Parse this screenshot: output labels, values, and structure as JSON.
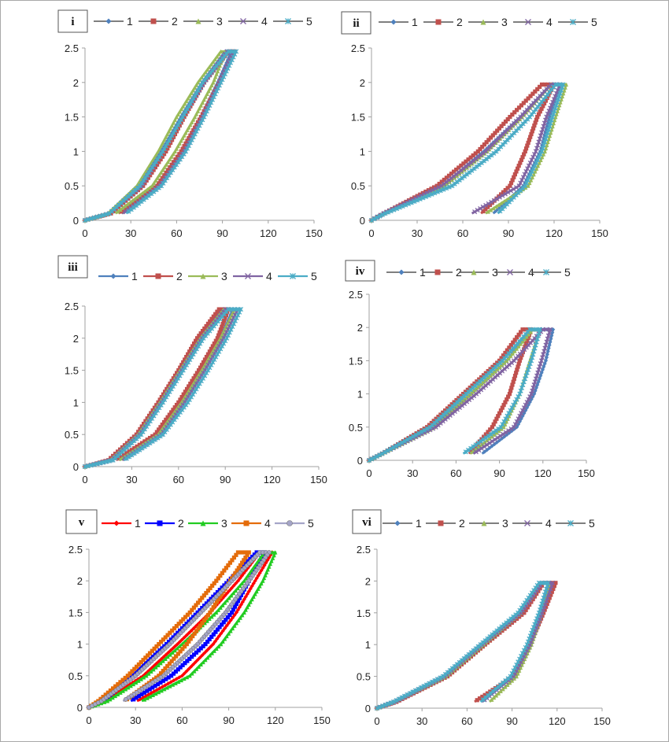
{
  "chart_data": [
    {
      "panel": "i",
      "type": "line",
      "xlim": [
        0,
        150
      ],
      "ylim": [
        0,
        2.5
      ],
      "xticks": [
        "0",
        "30",
        "60",
        "90",
        "120",
        "150"
      ],
      "yticks": [
        "0",
        "0.5",
        "1",
        "1.5",
        "2",
        "2.5"
      ],
      "legend_position": "top",
      "grid": false,
      "y_levels": [
        0,
        0.1,
        0.5,
        1,
        1.5,
        2,
        2.45
      ],
      "series": [
        {
          "name": "1",
          "color": "#4F81BD",
          "marker": "diamond",
          "loading_x": [
            0,
            16,
            36,
            50,
            63,
            77,
            92
          ],
          "unloading_x": [
            null,
            24,
            48,
            64,
            76,
            87,
            96
          ]
        },
        {
          "name": "2",
          "color": "#C0504D",
          "marker": "square",
          "loading_x": [
            0,
            17,
            38,
            53,
            65,
            78,
            94
          ],
          "unloading_x": [
            null,
            22,
            47,
            63,
            76,
            88,
            98
          ]
        },
        {
          "name": "3",
          "color": "#9BBB59",
          "marker": "triangle",
          "loading_x": [
            0,
            15,
            34,
            48,
            60,
            74,
            89
          ],
          "unloading_x": [
            null,
            20,
            44,
            59,
            72,
            84,
            92
          ]
        },
        {
          "name": "4",
          "color": "#8064A2",
          "marker": "x",
          "loading_x": [
            0,
            16,
            37,
            51,
            64,
            78,
            93
          ],
          "unloading_x": [
            null,
            25,
            49,
            65,
            77,
            88,
            97
          ]
        },
        {
          "name": "5",
          "color": "#4BACC6",
          "marker": "star",
          "loading_x": [
            0,
            16,
            36,
            51,
            64,
            77,
            94
          ],
          "unloading_x": [
            null,
            27,
            50,
            66,
            78,
            89,
            99
          ]
        }
      ]
    },
    {
      "panel": "ii",
      "type": "line",
      "xlim": [
        0,
        150
      ],
      "ylim": [
        0,
        2.5
      ],
      "xticks": [
        "0",
        "30",
        "60",
        "90",
        "120",
        "150"
      ],
      "yticks": [
        "0",
        "0.5",
        "1",
        "1.5",
        "2",
        "2.5"
      ],
      "legend_position": "top",
      "grid": false,
      "y_levels": [
        0,
        0.1,
        0.5,
        1,
        1.5,
        1.97
      ],
      "series": [
        {
          "name": "1",
          "color": "#4F81BD",
          "marker": "diamond",
          "loading_x": [
            0,
            8,
            47,
            74,
            98,
            118
          ],
          "unloading_x": [
            null,
            80,
            100,
            111,
            117,
            124
          ]
        },
        {
          "name": "2",
          "color": "#C0504D",
          "marker": "square",
          "loading_x": [
            0,
            8,
            43,
            70,
            91,
            112
          ],
          "unloading_x": [
            null,
            72,
            91,
            101,
            109,
            120
          ]
        },
        {
          "name": "3",
          "color": "#9BBB59",
          "marker": "triangle",
          "loading_x": [
            0,
            8,
            48,
            76,
            99,
            118
          ],
          "unloading_x": [
            null,
            75,
            103,
            114,
            121,
            128
          ]
        },
        {
          "name": "4",
          "color": "#8064A2",
          "marker": "x",
          "loading_x": [
            0,
            8,
            46,
            75,
            98,
            118
          ],
          "unloading_x": [
            null,
            66,
            97,
            108,
            115,
            124
          ]
        },
        {
          "name": "5",
          "color": "#4BACC6",
          "marker": "star",
          "loading_x": [
            0,
            9,
            53,
            82,
            104,
            121
          ],
          "unloading_x": [
            null,
            83,
            101,
            112,
            119,
            126
          ]
        }
      ]
    },
    {
      "panel": "iii",
      "type": "line",
      "xlim": [
        0,
        150
      ],
      "ylim": [
        0,
        2.5
      ],
      "xticks": [
        "0",
        "30",
        "60",
        "90",
        "120",
        "150"
      ],
      "yticks": [
        "0",
        "0.5",
        "1",
        "1.5",
        "2",
        "2.5"
      ],
      "legend_position": "top",
      "grid": false,
      "y_levels": [
        0,
        0.1,
        0.5,
        1,
        1.5,
        2,
        2.45
      ],
      "series": [
        {
          "name": "1",
          "color": "#4F81BD",
          "marker": "diamond",
          "loading_x": [
            0,
            16,
            33,
            47,
            60,
            74,
            88
          ],
          "unloading_x": [
            null,
            22,
            47,
            62,
            75,
            87,
            95
          ]
        },
        {
          "name": "2",
          "color": "#C0504D",
          "marker": "square",
          "loading_x": [
            0,
            15,
            33,
            47,
            60,
            72,
            86
          ],
          "unloading_x": [
            null,
            20,
            45,
            60,
            73,
            85,
            92
          ]
        },
        {
          "name": "3",
          "color": "#9BBB59",
          "marker": "triangle",
          "loading_x": [
            0,
            16,
            34,
            48,
            61,
            74,
            89
          ],
          "unloading_x": [
            null,
            22,
            47,
            62,
            75,
            87,
            96
          ]
        },
        {
          "name": "4",
          "color": "#8064A2",
          "marker": "x",
          "loading_x": [
            0,
            17,
            35,
            49,
            62,
            75,
            90
          ],
          "unloading_x": [
            null,
            24,
            49,
            64,
            77,
            89,
            98
          ]
        },
        {
          "name": "5",
          "color": "#4BACC6",
          "marker": "star",
          "loading_x": [
            0,
            18,
            36,
            50,
            63,
            76,
            92
          ],
          "unloading_x": [
            null,
            25,
            50,
            66,
            79,
            91,
            100
          ]
        }
      ]
    },
    {
      "panel": "iv",
      "type": "line",
      "xlim": [
        0,
        150
      ],
      "ylim": [
        0,
        2.5
      ],
      "xticks": [
        "0",
        "30",
        "60",
        "90",
        "120",
        "150"
      ],
      "yticks": [
        "0",
        "0.5",
        "1",
        "1.5",
        "2",
        "2.5"
      ],
      "legend_position": "top",
      "grid": false,
      "y_levels": [
        0,
        0.1,
        0.5,
        1,
        1.5,
        1.97
      ],
      "series": [
        {
          "name": "1",
          "color": "#4F81BD",
          "marker": "diamond",
          "loading_x": [
            0,
            9,
            44,
            70,
            95,
            112
          ],
          "unloading_x": [
            null,
            78,
            102,
            114,
            122,
            127
          ]
        },
        {
          "name": "2",
          "color": "#C0504D",
          "marker": "square",
          "loading_x": [
            0,
            9,
            40,
            65,
            90,
            106
          ],
          "unloading_x": [
            null,
            69,
            85,
            97,
            104,
            112
          ]
        },
        {
          "name": "3",
          "color": "#9BBB59",
          "marker": "triangle",
          "loading_x": [
            0,
            9,
            45,
            70,
            95,
            113
          ],
          "unloading_x": [
            null,
            70,
            93,
            104,
            111,
            118
          ]
        },
        {
          "name": "4",
          "color": "#8064A2",
          "marker": "x",
          "loading_x": [
            0,
            9,
            46,
            74,
            100,
            120
          ],
          "unloading_x": [
            null,
            72,
            100,
            112,
            119,
            125
          ]
        },
        {
          "name": "5",
          "color": "#4BACC6",
          "marker": "star",
          "loading_x": [
            0,
            9,
            42,
            67,
            92,
            111
          ],
          "unloading_x": [
            null,
            65,
            91,
            104,
            112,
            118
          ]
        }
      ]
    },
    {
      "panel": "v",
      "type": "line",
      "xlim": [
        0,
        150
      ],
      "ylim": [
        0,
        2.5
      ],
      "xticks": [
        "0",
        "30",
        "60",
        "90",
        "120",
        "150"
      ],
      "yticks": [
        "0",
        "0.5",
        "1",
        "1.5",
        "2",
        "2.5"
      ],
      "legend_position": "top",
      "grid": false,
      "y_levels": [
        0,
        0.1,
        0.5,
        1,
        1.5,
        2,
        2.45
      ],
      "series": [
        {
          "name": "1",
          "color": "#FF0000",
          "marker": "diamond",
          "loading_x": [
            0,
            10,
            35,
            57,
            78,
            96,
            110
          ],
          "unloading_x": [
            null,
            31,
            60,
            80,
            95,
            107,
            118
          ]
        },
        {
          "name": "2",
          "color": "#0000FF",
          "marker": "square",
          "loading_x": [
            0,
            9,
            28,
            50,
            70,
            90,
            108
          ],
          "unloading_x": [
            null,
            27,
            53,
            75,
            92,
            103,
            113
          ]
        },
        {
          "name": "3",
          "color": "#22CC22",
          "marker": "triangle",
          "loading_x": [
            0,
            12,
            37,
            60,
            82,
            100,
            113
          ],
          "unloading_x": [
            null,
            34,
            65,
            85,
            100,
            112,
            120
          ]
        },
        {
          "name": "4",
          "color": "#E46C0A",
          "marker": "square",
          "loading_x": [
            0,
            6,
            25,
            45,
            65,
            82,
            96
          ],
          "unloading_x": [
            null,
            23,
            45,
            63,
            78,
            91,
            103
          ]
        },
        {
          "name": "5",
          "color": "#A5A5C8",
          "marker": "circle",
          "loading_x": [
            0,
            8,
            30,
            52,
            72,
            92,
            110
          ],
          "unloading_x": [
            null,
            22,
            48,
            70,
            88,
            103,
            116
          ]
        }
      ]
    },
    {
      "panel": "vi",
      "type": "line",
      "xlim": [
        0,
        150
      ],
      "ylim": [
        0,
        2.5
      ],
      "xticks": [
        "0",
        "30",
        "60",
        "90",
        "120",
        "150"
      ],
      "yticks": [
        "0",
        "0.5",
        "1",
        "1.5",
        "2",
        "2.5"
      ],
      "legend_position": "top",
      "grid": false,
      "y_levels": [
        0,
        0.1,
        0.5,
        1,
        1.5,
        1.97
      ],
      "series": [
        {
          "name": "1",
          "color": "#4F81BD",
          "marker": "diamond",
          "loading_x": [
            0,
            12,
            46,
            71,
            96,
            110
          ],
          "unloading_x": [
            null,
            70,
            90,
            101,
            109,
            115
          ]
        },
        {
          "name": "2",
          "color": "#C0504D",
          "marker": "square",
          "loading_x": [
            0,
            13,
            47,
            72,
            98,
            111
          ],
          "unloading_x": [
            null,
            65,
            91,
            102,
            111,
            119
          ]
        },
        {
          "name": "3",
          "color": "#9BBB59",
          "marker": "triangle",
          "loading_x": [
            0,
            12,
            46,
            71,
            96,
            109
          ],
          "unloading_x": [
            null,
            75,
            93,
            103,
            110,
            116
          ]
        },
        {
          "name": "4",
          "color": "#8064A2",
          "marker": "x",
          "loading_x": [
            0,
            12,
            45,
            70,
            96,
            110
          ],
          "unloading_x": [
            null,
            70,
            91,
            102,
            110,
            117
          ]
        },
        {
          "name": "5",
          "color": "#4BACC6",
          "marker": "star",
          "loading_x": [
            0,
            11,
            44,
            69,
            94,
            108
          ],
          "unloading_x": [
            null,
            69,
            89,
            100,
            108,
            114
          ]
        }
      ]
    }
  ]
}
